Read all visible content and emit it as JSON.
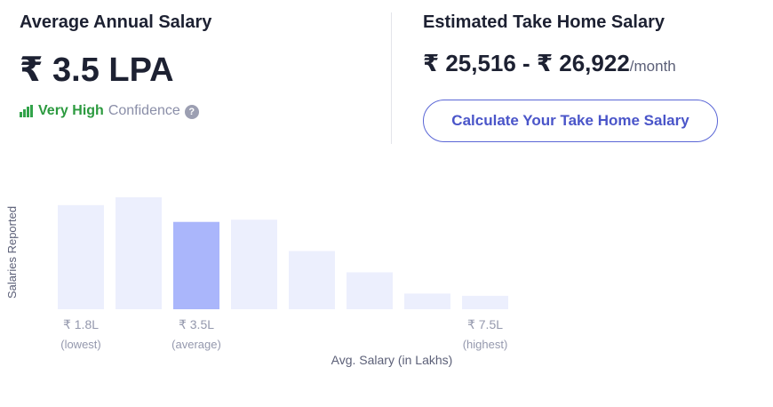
{
  "average": {
    "heading": "Average Annual Salary",
    "value": "₹ 3.5 LPA",
    "confidence_level": "Very High",
    "confidence_label": "Confidence",
    "help_symbol": "?"
  },
  "take_home": {
    "heading": "Estimated Take Home Salary",
    "range": "₹ 25,516 - ₹ 26,922",
    "unit": "/month",
    "button_label": "Calculate Your Take Home Salary"
  },
  "colors": {
    "bar": "#eceffd",
    "bar_highlight": "#aab6fb",
    "confidence_green": "#2c9a3f",
    "button_border": "#5a66d6"
  },
  "icons": {
    "confidence": "signal-bars-icon",
    "help": "question-circle-icon"
  },
  "chart_data": {
    "type": "bar",
    "ylabel": "Salaries Reported",
    "xlabel": "Avg. Salary (in Lakhs)",
    "bins": 8,
    "values": [
      0.93,
      1.0,
      0.78,
      0.8,
      0.52,
      0.33,
      0.14,
      0.12
    ],
    "highlight_index": 2,
    "tick_labels": [
      {
        "bin": 0,
        "value": "₹ 1.8L",
        "caption": "(lowest)"
      },
      {
        "bin": 2,
        "value": "₹ 3.5L",
        "caption": "(average)"
      },
      {
        "bin": 7,
        "value": "₹ 7.5L",
        "caption": "(highest)"
      }
    ]
  }
}
